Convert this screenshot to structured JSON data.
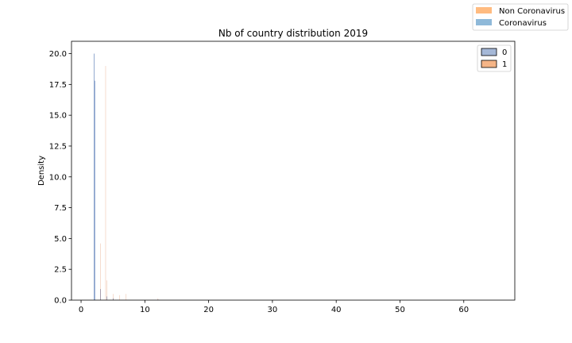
{
  "chart_data": {
    "type": "histogram",
    "title": "Nb of country distribution 2019",
    "xlabel": "",
    "ylabel": "Density",
    "xlim": [
      -1.5,
      68
    ],
    "ylim": [
      0,
      21
    ],
    "x_ticks": [
      0,
      10,
      20,
      30,
      40,
      50,
      60
    ],
    "y_ticks": [
      0.0,
      2.5,
      5.0,
      7.5,
      10.0,
      12.5,
      15.0,
      17.5,
      20.0
    ],
    "y_tick_labels": [
      "0.0",
      "2.5",
      "5.0",
      "7.5",
      "10.0",
      "12.5",
      "15.0",
      "17.5",
      "20.0"
    ],
    "bin_width": 0.1,
    "grid": false,
    "series": [
      {
        "name": "0",
        "color": "#4c72b0",
        "bins": [
          {
            "x": 2.0,
            "density": 20.0
          },
          {
            "x": 2.1,
            "density": 17.8
          },
          {
            "x": 3.0,
            "density": 0.9
          },
          {
            "x": 4.0,
            "density": 0.3
          },
          {
            "x": 5.0,
            "density": 0.15
          },
          {
            "x": 12.0,
            "density": 0.05
          }
        ]
      },
      {
        "name": "1",
        "color": "#dd8452",
        "bins": [
          {
            "x": 3.0,
            "density": 4.6
          },
          {
            "x": 3.8,
            "density": 19.0
          },
          {
            "x": 4.0,
            "density": 1.6
          },
          {
            "x": 5.0,
            "density": 0.5
          },
          {
            "x": 6.0,
            "density": 0.4
          },
          {
            "x": 7.0,
            "density": 0.5
          },
          {
            "x": 12.0,
            "density": 0.15
          }
        ]
      }
    ],
    "inner_legend": {
      "placement": "top-right",
      "entries": [
        {
          "label": "0",
          "color": "#a5b8d7"
        },
        {
          "label": "1",
          "color": "#f5b587"
        }
      ]
    },
    "figure_legend": {
      "placement": "figure-top-right",
      "entries": [
        {
          "label": "Non Coronavirus",
          "color": "#ffbb80"
        },
        {
          "label": "Coronavirus",
          "color": "#8fb9d9"
        }
      ]
    }
  }
}
